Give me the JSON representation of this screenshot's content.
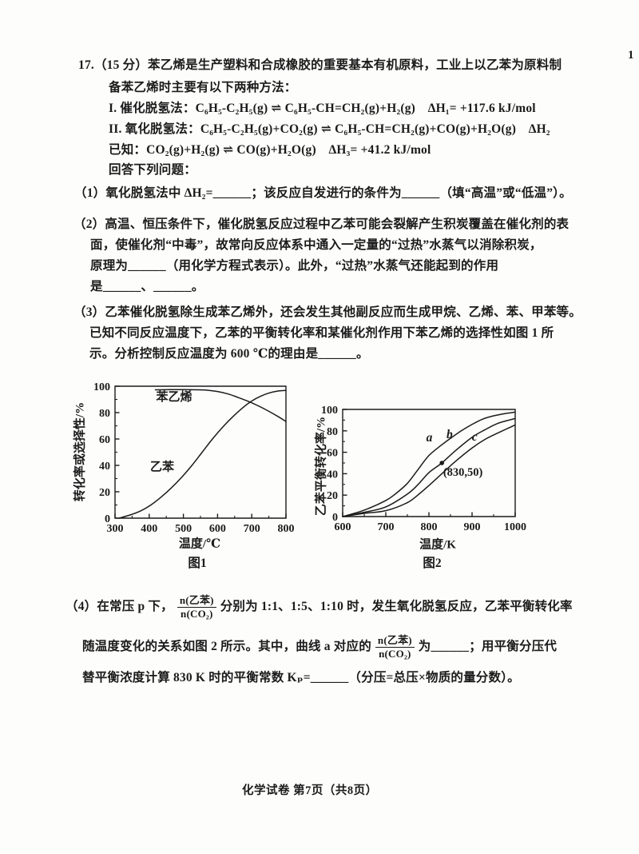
{
  "page": {
    "corner": "1",
    "footer": "化学试卷 第7页（共8页）"
  },
  "q17": {
    "line1": "17.（15 分）苯乙烯是生产塑料和合成橡胶的重要基本有机原料，工业上以乙苯为原料制",
    "line2": "备苯乙烯时主要有以下两种方法：",
    "method1": "I. 催化脱氢法：C₆H₅-C₂H₅(g) ⇌ C₆H₅-CH=CH₂(g)+H₂(g)　ΔH₁= +117.6 kJ/mol",
    "method2": "II. 氧化脱氢法：C₆H₅-C₂H₅(g)+CO₂(g) ⇌ C₆H₅-CH=CH₂(g)+CO(g)+H₂O(g)　ΔH₂",
    "known": "已知：CO₂(g)+H₂(g) ⇌ CO(g)+H₂O(g)　ΔH₃= +41.2 kJ/mol",
    "prompt": "回答下列问题：",
    "part1": "（1）氧化脱氢法中 ΔH₂=______；该反应自发进行的条件为______（填“高温”或“低温”）。",
    "part2_l1": "（2）高温、恒压条件下，催化脱氢反应过程中乙苯可能会裂解产生积炭覆盖在催化剂的表",
    "part2_l2": "面，使催化剂“中毒”，故常向反应体系中通入一定量的“过热”水蒸气以消除积炭，",
    "part2_l3": "原理为______（用化学方程式表示）。此外，“过热”水蒸气还能起到的作用",
    "part2_l4": "是______、______。",
    "part3_l1": "（3）乙苯催化脱氢除生成苯乙烯外，还会发生其他副反应而生成甲烷、乙烯、苯、甲苯等。",
    "part3_l2": "已知不同反应温度下，乙苯的平衡转化率和某催化剂作用下苯乙烯的选择性如图 1 所",
    "part3_l3": "示。分析控制反应温度为 600 ℃的理由是______。",
    "part4_l1_pre": "（4）在常压 p 下，",
    "part4_l1_post": "分别为 1:1、1:5、1:10 时，发生氧化脱氢反应，乙苯平衡转化率",
    "part4_l2_pre": "随温度变化的关系如图 2 所示。其中，曲线 a 对应的",
    "part4_l2_post": "为______；用平衡分压代",
    "part4_l3": "替平衡浓度计算 830 K 时的平衡常数 Kₚ=______（分压=总压×物质的量分数）。",
    "fraction": {
      "num": "n(乙苯)",
      "den": "n(CO₂)"
    }
  },
  "chart_data": [
    {
      "type": "line",
      "caption": "图1",
      "xlabel": "温度/℃",
      "ylabel": "转化率或选择性/%",
      "xlim": [
        300,
        800
      ],
      "ylim": [
        0,
        100
      ],
      "xticks": [
        300,
        400,
        500,
        600,
        700,
        800
      ],
      "xminor": [
        350,
        450,
        550,
        650,
        750
      ],
      "yticks": [
        0,
        20,
        40,
        60,
        80,
        100
      ],
      "yminor": [
        10,
        30,
        50,
        70,
        90
      ],
      "frame": "box",
      "legend_position": "inline-labels",
      "grid": false,
      "series": [
        {
          "name": "苯乙烯",
          "label": {
            "text": "苯乙烯",
            "x": 473,
            "y": 89
          },
          "points": [
            [
              418,
              97.3
            ],
            [
              460,
              97.4
            ],
            [
              500,
              97.4
            ],
            [
              540,
              97.3
            ],
            [
              570,
              97
            ],
            [
              600,
              96
            ],
            [
              630,
              94.2
            ],
            [
              660,
              91.5
            ],
            [
              690,
              88.5
            ],
            [
              720,
              85
            ],
            [
              750,
              81
            ],
            [
              775,
              77.3
            ],
            [
              800,
              73.3
            ]
          ]
        },
        {
          "name": "乙苯",
          "label": {
            "text": "乙苯",
            "x": 438,
            "y": 36
          },
          "points": [
            [
              312,
              0
            ],
            [
              345,
              2.5
            ],
            [
              375,
              5.5
            ],
            [
              405,
              10
            ],
            [
              435,
              16
            ],
            [
              465,
              23
            ],
            [
              495,
              31
            ],
            [
              525,
              40
            ],
            [
              555,
              50
            ],
            [
              585,
              60
            ],
            [
              615,
              69
            ],
            [
              645,
              77
            ],
            [
              675,
              84
            ],
            [
              700,
              88.8
            ],
            [
              725,
              92.3
            ],
            [
              750,
              94.8
            ],
            [
              775,
              96.3
            ],
            [
              800,
              96.8
            ]
          ]
        }
      ],
      "annotations": []
    },
    {
      "type": "line",
      "caption": "图2",
      "xlabel": "温度/K",
      "ylabel": "乙苯平衡转化率/%",
      "xlim": [
        600,
        1000
      ],
      "ylim": [
        0,
        100
      ],
      "xticks": [
        600,
        700,
        800,
        900,
        1000
      ],
      "xminor": [
        650,
        750,
        850,
        950
      ],
      "yticks": [
        0,
        20,
        40,
        60,
        80,
        100
      ],
      "yminor": [
        10,
        30,
        50,
        70,
        90
      ],
      "frame": "box",
      "legend_position": "inline-labels",
      "grid": false,
      "series": [
        {
          "name": "a",
          "label": {
            "text": "a",
            "x": 801,
            "y": 70,
            "i": 1
          },
          "points": [
            [
              600,
              0
            ],
            [
              650,
              6
            ],
            [
              700,
              15
            ],
            [
              725,
              22
            ],
            [
              750,
              31
            ],
            [
              775,
              44
            ],
            [
              800,
              57
            ],
            [
              830,
              67
            ],
            [
              850,
              73
            ],
            [
              875,
              80
            ],
            [
              900,
              86
            ],
            [
              925,
              91
            ],
            [
              950,
              94
            ],
            [
              975,
              96
            ],
            [
              1000,
              97.5
            ]
          ]
        },
        {
          "name": "b",
          "label": {
            "text": "b",
            "x": 848,
            "y": 73,
            "i": 1
          },
          "points": [
            [
              600,
              0
            ],
            [
              650,
              4
            ],
            [
              700,
              9
            ],
            [
              750,
              21
            ],
            [
              775,
              30
            ],
            [
              800,
              41
            ],
            [
              830,
              50
            ],
            [
              860,
              61
            ],
            [
              900,
              74
            ],
            [
              930,
              81
            ],
            [
              960,
              87
            ],
            [
              1000,
              91.5
            ]
          ]
        },
        {
          "name": "c",
          "label": {
            "text": "c",
            "x": 906,
            "y": 71,
            "i": 1
          },
          "points": [
            [
              600,
              0
            ],
            [
              650,
              3
            ],
            [
              700,
              5.5
            ],
            [
              750,
              13
            ],
            [
              780,
              22
            ],
            [
              800,
              29
            ],
            [
              830,
              40
            ],
            [
              860,
              51
            ],
            [
              900,
              64
            ],
            [
              930,
              72
            ],
            [
              960,
              78
            ],
            [
              1000,
              85.5
            ]
          ]
        }
      ],
      "annotations": [
        {
          "dot": [
            830,
            50
          ]
        },
        {
          "text": "(830,50)",
          "at": [
            833,
            38
          ],
          "anchor": "start"
        }
      ]
    }
  ]
}
